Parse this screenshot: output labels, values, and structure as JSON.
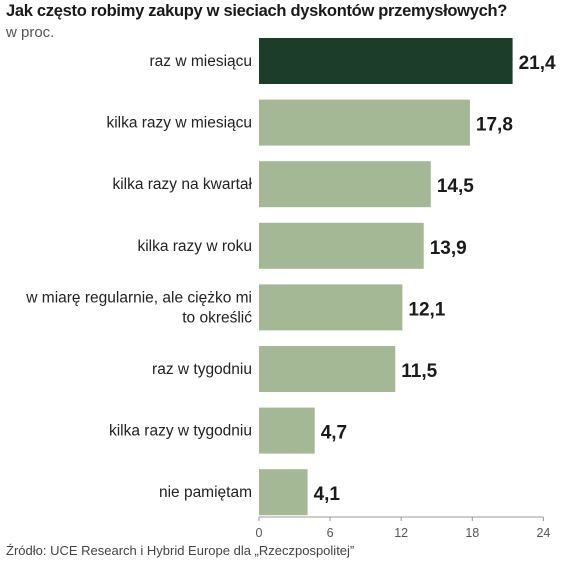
{
  "title": "Jak często robimy zakupy w sieciach dyskontów przemysłowych?",
  "subtitle": "w proc.",
  "source": "Źródło: UCE Research i Hybrid Europe dla „Rzeczpospolitej”",
  "colors": {
    "highlight": "#1c3d2a",
    "bar": "#a4b895",
    "axis": "#999999",
    "tick_text": "#555555"
  },
  "chart_data": {
    "type": "bar",
    "orientation": "horizontal",
    "categories": [
      [
        "raz w miesiącu"
      ],
      [
        "kilka razy w miesiącu"
      ],
      [
        "kilka razy na kwartał"
      ],
      [
        "kilka razy w roku"
      ],
      [
        "w miarę regularnie, ale ciężko mi",
        "to określić"
      ],
      [
        "raz w tygodniu"
      ],
      [
        "kilka razy w tygodniu"
      ],
      [
        "nie pamiętam"
      ]
    ],
    "values": [
      21.4,
      17.8,
      14.5,
      13.9,
      12.1,
      11.5,
      4.7,
      4.1
    ],
    "value_labels": [
      "21,4",
      "17,8",
      "14,5",
      "13,9",
      "12,1",
      "11,5",
      "4,7",
      "4,1"
    ],
    "highlight_index": 0,
    "xlim": [
      0,
      24
    ],
    "xticks": [
      0,
      6,
      12,
      18,
      24
    ],
    "grid": false
  }
}
